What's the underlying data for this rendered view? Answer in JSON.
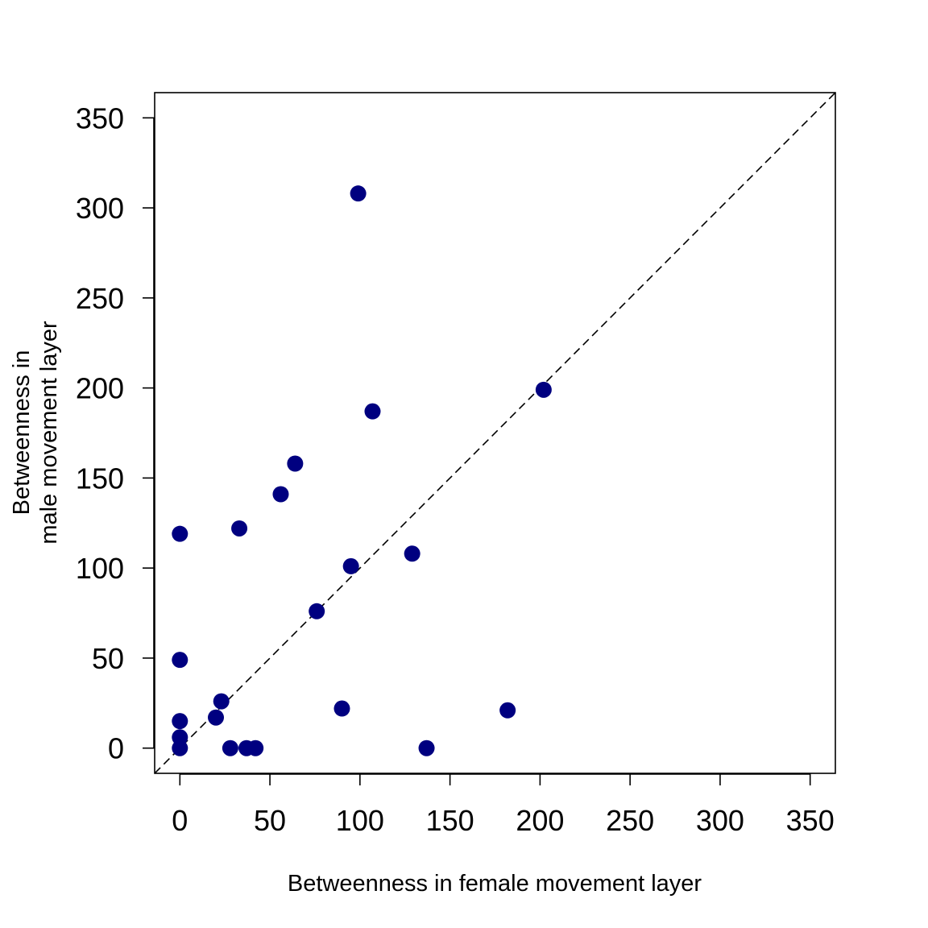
{
  "chart_data": {
    "type": "scatter",
    "title": "",
    "xlabel": "Betweenness in female movement layer",
    "ylabel_lines": [
      "Betweenness in",
      "male movement layer"
    ],
    "xlim": [
      -14,
      364
    ],
    "ylim": [
      -14,
      364
    ],
    "xticks": [
      0,
      50,
      100,
      150,
      200,
      250,
      300,
      350
    ],
    "yticks": [
      0,
      50,
      100,
      150,
      200,
      250,
      300,
      350
    ],
    "x_tick_labels": [
      "0",
      "50",
      "100",
      "150",
      "200",
      "250",
      "300",
      "350"
    ],
    "y_tick_labels": [
      "0",
      "50",
      "100",
      "150",
      "200",
      "250",
      "300",
      "350"
    ],
    "reference_line": "y = x (dashed)",
    "point_color": "#000080",
    "points": [
      {
        "x": 0,
        "y": 0
      },
      {
        "x": 0,
        "y": 6
      },
      {
        "x": 0,
        "y": 15
      },
      {
        "x": 0,
        "y": 49
      },
      {
        "x": 0,
        "y": 119
      },
      {
        "x": 20,
        "y": 17
      },
      {
        "x": 23,
        "y": 26
      },
      {
        "x": 28,
        "y": 0
      },
      {
        "x": 37,
        "y": 0
      },
      {
        "x": 42,
        "y": 0
      },
      {
        "x": 33,
        "y": 122
      },
      {
        "x": 56,
        "y": 141
      },
      {
        "x": 64,
        "y": 158
      },
      {
        "x": 76,
        "y": 76
      },
      {
        "x": 90,
        "y": 22
      },
      {
        "x": 95,
        "y": 101
      },
      {
        "x": 99,
        "y": 308
      },
      {
        "x": 107,
        "y": 187
      },
      {
        "x": 129,
        "y": 108
      },
      {
        "x": 137,
        "y": 0
      },
      {
        "x": 182,
        "y": 21
      },
      {
        "x": 202,
        "y": 199
      }
    ]
  }
}
